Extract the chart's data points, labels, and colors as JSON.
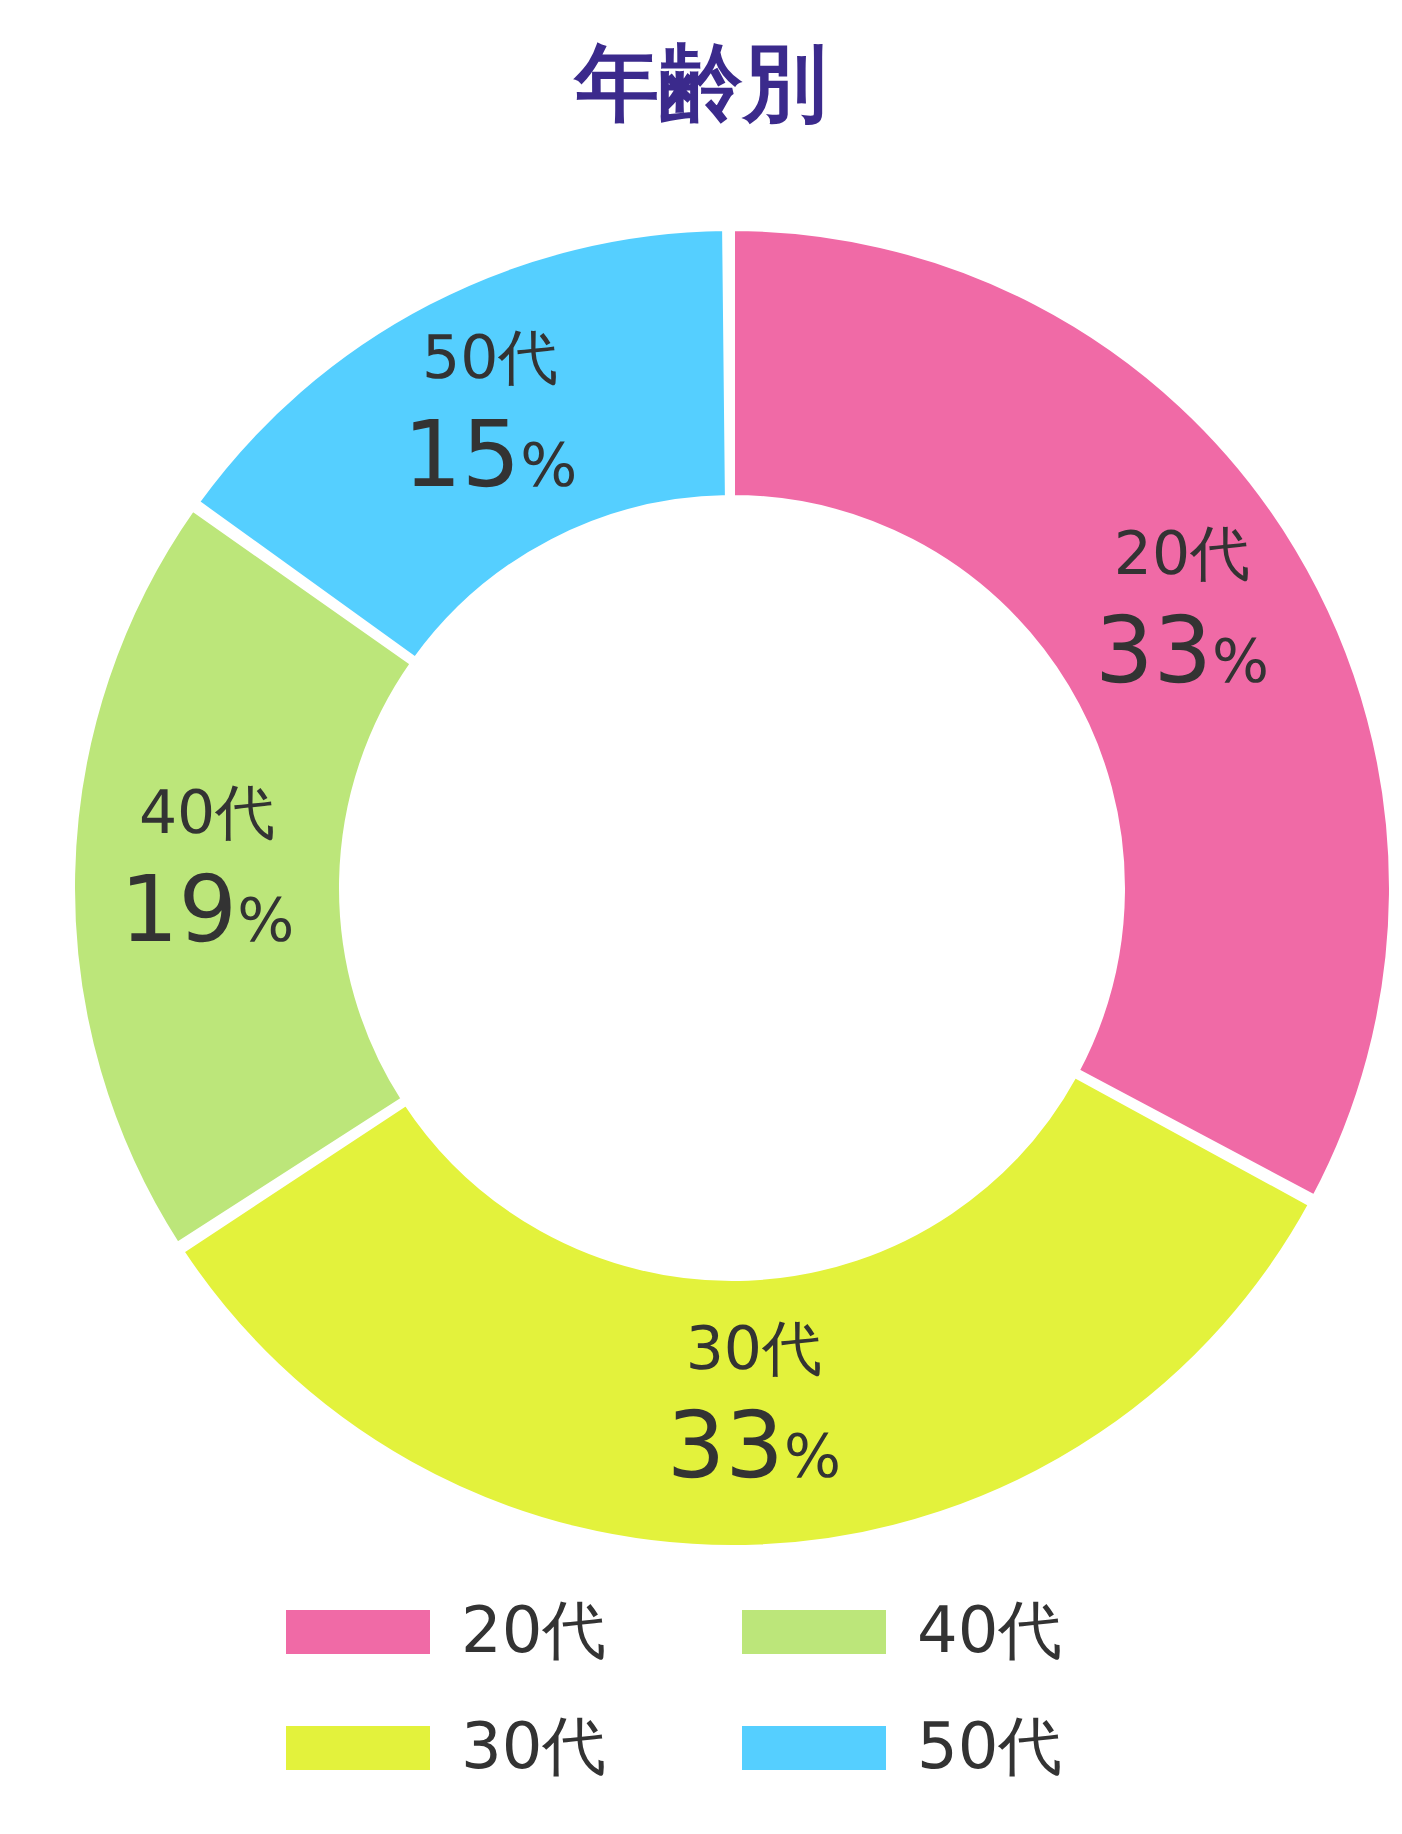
{
  "chart_data": {
    "type": "donut",
    "title": "年齢別",
    "categories": [
      "20代",
      "30代",
      "40代",
      "50代"
    ],
    "values": [
      33,
      33,
      19,
      15
    ],
    "value_labels": [
      "33%",
      "33%",
      "19%",
      "15%"
    ],
    "colors": [
      "#f06aa6",
      "#e3f23c",
      "#bce67a",
      "#55cfff"
    ],
    "legend": "bottom"
  }
}
